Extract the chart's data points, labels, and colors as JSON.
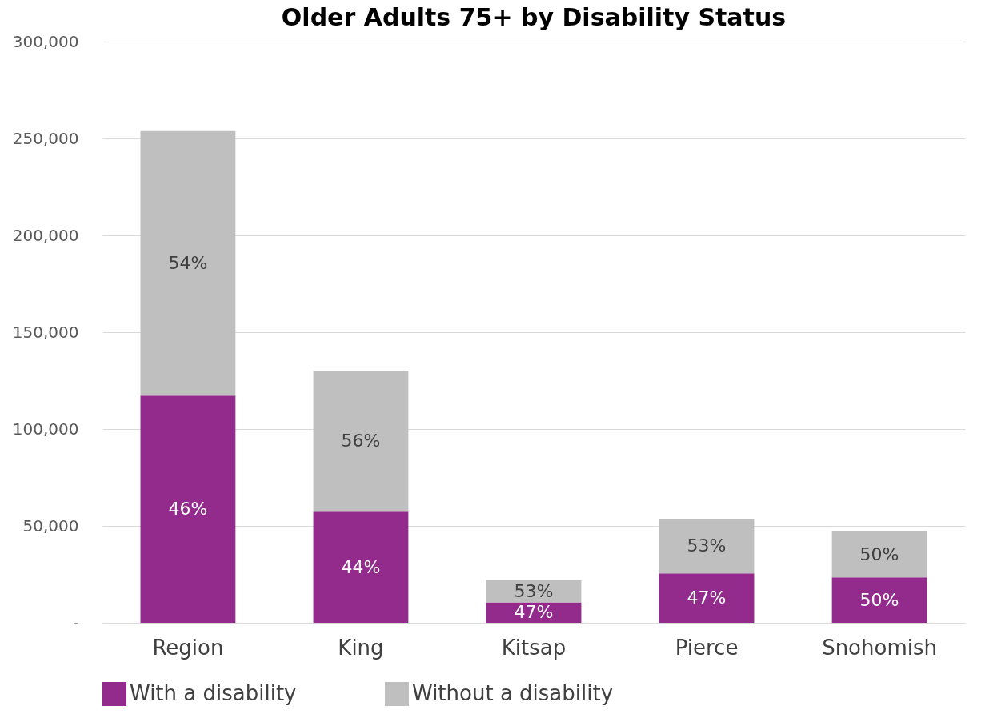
{
  "chart_data": {
    "type": "bar",
    "title": "Older Adults 75+ by Disability Status",
    "stacked": true,
    "categories": [
      "Region",
      "King",
      "Kitsap",
      "Pierce",
      "Snohomish"
    ],
    "series": [
      {
        "name": "With a disability",
        "color": "#922b8c",
        "values": [
          117300,
          57300,
          10500,
          25500,
          23400
        ]
      },
      {
        "name": "Without a disability",
        "color": "#bfbfbf",
        "values": [
          136500,
          72800,
          11500,
          28100,
          23800
        ]
      }
    ],
    "annotations": [
      "46%",
      "44%",
      "47%",
      "47%",
      "50%",
      "54%",
      "56%",
      "53%",
      "53%",
      "50%"
    ],
    "ylim": [
      0,
      300000
    ],
    "yticks": [
      {
        "value": 0,
        "label": "-"
      },
      {
        "value": 50000,
        "label": "50,000"
      },
      {
        "value": 100000,
        "label": "100,000"
      },
      {
        "value": 150000,
        "label": "150,000"
      },
      {
        "value": 200000,
        "label": "200,000"
      },
      {
        "value": 250000,
        "label": "250,000"
      },
      {
        "value": 300000,
        "label": "300,000"
      }
    ],
    "grid": "y",
    "legend": "bottom"
  }
}
